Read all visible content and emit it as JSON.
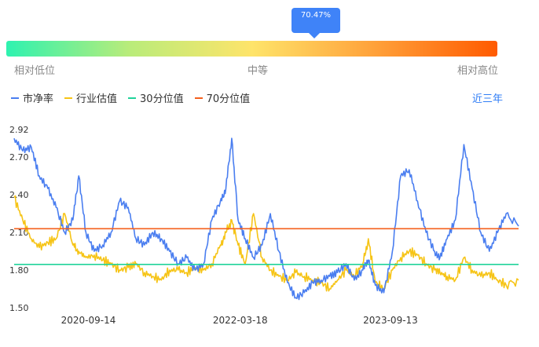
{
  "gauge": {
    "percentile_label": "70.47%",
    "percentile": 0.7047,
    "labels": {
      "low": "相对低位",
      "mid": "中等",
      "high": "相对高位"
    },
    "colors": [
      "#2ef2b0",
      "#fee46a",
      "#ff5a00"
    ]
  },
  "legend": {
    "pb": "市净率",
    "industry": "行业估值",
    "p30": "30分位值",
    "p70": "70分位值"
  },
  "range_button": "近三年",
  "colors": {
    "pb": "#4a7ef0",
    "industry": "#f6c416",
    "p30": "#20d39a",
    "p70": "#f4601d"
  },
  "chart_data": {
    "type": "line",
    "ylim": [
      1.5,
      2.92
    ],
    "yticks": [
      "2.92",
      "2.70",
      "2.40",
      "2.10",
      "1.80",
      "1.50"
    ],
    "xticks": [
      "2020-09-14",
      "2022-03-18",
      "2023-09-13"
    ],
    "x_range": [
      "2019-12-20",
      "2024-12-20"
    ],
    "reference_lines": {
      "p30": 1.845,
      "p70": 2.13
    },
    "series": [
      {
        "name": "市净率",
        "x": [
          "2019-12-20",
          "2020-01-20",
          "2020-02-20",
          "2020-03-20",
          "2020-04-20",
          "2020-05-20",
          "2020-06-20",
          "2020-07-20",
          "2020-08-10",
          "2020-09-05",
          "2020-10-05",
          "2020-11-05",
          "2020-12-05",
          "2021-01-05",
          "2021-02-05",
          "2021-03-05",
          "2021-04-05",
          "2021-05-05",
          "2021-06-05",
          "2021-07-05",
          "2021-08-05",
          "2021-09-05",
          "2021-10-05",
          "2021-11-05",
          "2021-12-05",
          "2022-01-05",
          "2022-01-25",
          "2022-02-15",
          "2022-03-10",
          "2022-04-05",
          "2022-05-05",
          "2022-06-05",
          "2022-07-05",
          "2022-08-05",
          "2022-09-05",
          "2022-10-05",
          "2022-11-05",
          "2022-12-05",
          "2023-01-05",
          "2023-02-05",
          "2023-03-05",
          "2023-04-05",
          "2023-05-05",
          "2023-06-05",
          "2023-06-25",
          "2023-07-20",
          "2023-08-20",
          "2023-09-20",
          "2023-10-20",
          "2023-11-20",
          "2023-12-20",
          "2024-01-20",
          "2024-02-20",
          "2024-03-10",
          "2024-04-05",
          "2024-05-05",
          "2024-06-05",
          "2024-07-05",
          "2024-08-05",
          "2024-09-05",
          "2024-10-05",
          "2024-11-05",
          "2024-12-20"
        ],
        "values": [
          2.85,
          2.75,
          2.78,
          2.55,
          2.45,
          2.3,
          2.1,
          2.2,
          2.55,
          2.1,
          1.95,
          2.0,
          2.1,
          2.35,
          2.3,
          2.05,
          2.0,
          2.1,
          2.05,
          1.95,
          1.85,
          1.9,
          1.8,
          1.85,
          2.2,
          2.35,
          2.45,
          2.85,
          2.2,
          2.05,
          1.9,
          2.0,
          2.25,
          1.95,
          1.7,
          1.58,
          1.62,
          1.7,
          1.72,
          1.75,
          1.78,
          1.85,
          1.72,
          1.8,
          1.88,
          1.68,
          1.62,
          1.95,
          2.55,
          2.6,
          2.35,
          2.1,
          1.95,
          1.9,
          2.05,
          2.2,
          2.8,
          2.45,
          2.1,
          1.95,
          2.1,
          2.25,
          2.15
        ]
      },
      {
        "name": "行业估值",
        "x": [
          "2019-12-20",
          "2020-01-20",
          "2020-02-20",
          "2020-03-20",
          "2020-04-20",
          "2020-05-20",
          "2020-06-20",
          "2020-07-20",
          "2020-08-10",
          "2020-09-05",
          "2020-10-05",
          "2020-11-05",
          "2020-12-05",
          "2021-01-05",
          "2021-02-05",
          "2021-03-05",
          "2021-04-05",
          "2021-05-05",
          "2021-06-05",
          "2021-07-05",
          "2021-08-05",
          "2021-09-05",
          "2021-10-05",
          "2021-11-05",
          "2021-12-05",
          "2022-01-05",
          "2022-01-25",
          "2022-02-15",
          "2022-03-10",
          "2022-04-05",
          "2022-05-05",
          "2022-06-05",
          "2022-07-05",
          "2022-08-05",
          "2022-09-05",
          "2022-10-05",
          "2022-11-05",
          "2022-12-05",
          "2023-01-05",
          "2023-02-05",
          "2023-03-05",
          "2023-04-05",
          "2023-05-05",
          "2023-06-05",
          "2023-06-25",
          "2023-07-20",
          "2023-08-20",
          "2023-09-20",
          "2023-10-20",
          "2023-11-20",
          "2023-12-20",
          "2024-01-20",
          "2024-02-20",
          "2024-03-10",
          "2024-04-05",
          "2024-05-05",
          "2024-06-05",
          "2024-07-05",
          "2024-08-05",
          "2024-09-05",
          "2024-10-05",
          "2024-11-05",
          "2024-12-20"
        ],
        "values": [
          2.38,
          2.2,
          2.05,
          1.98,
          2.02,
          2.05,
          2.25,
          2.0,
          1.95,
          1.9,
          1.92,
          1.88,
          1.85,
          1.8,
          1.82,
          1.85,
          1.78,
          1.75,
          1.72,
          1.8,
          1.8,
          1.78,
          1.82,
          1.8,
          1.85,
          2.0,
          2.1,
          2.2,
          2.0,
          1.85,
          2.25,
          1.9,
          1.8,
          1.75,
          1.72,
          1.78,
          1.75,
          1.72,
          1.7,
          1.65,
          1.72,
          1.8,
          1.75,
          1.85,
          2.05,
          1.7,
          1.65,
          1.8,
          1.9,
          1.95,
          1.92,
          1.85,
          1.8,
          1.78,
          1.75,
          1.72,
          1.9,
          1.8,
          1.75,
          1.78,
          1.72,
          1.68,
          1.72
        ]
      }
    ]
  }
}
